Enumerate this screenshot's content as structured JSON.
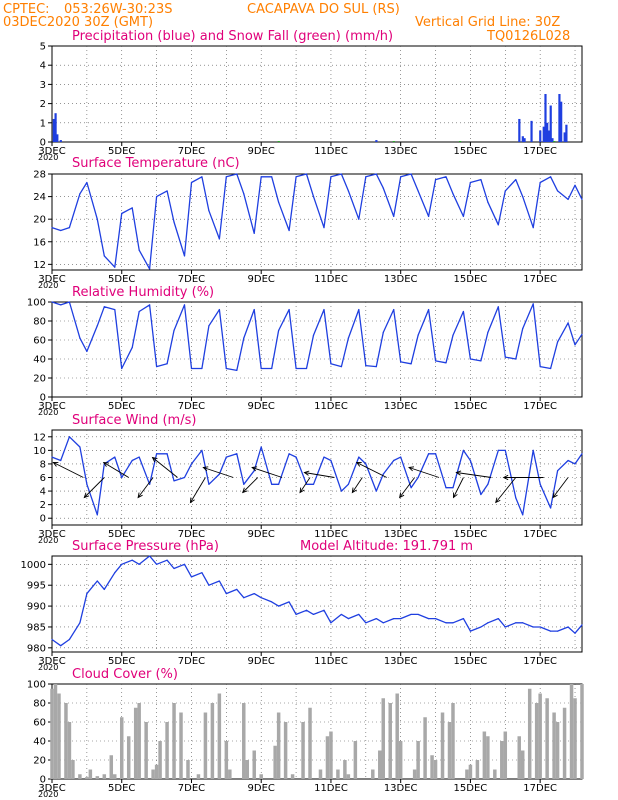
{
  "header": {
    "source": "CPTEC:",
    "location_coords": "053:26W-30:23S",
    "location_name": "CACAPAVA DO SUL (RS)",
    "run_date": "03DEC2020 30Z (GMT)",
    "grid_note": "Vertical Grid Line: 30Z",
    "model_code": "TQ0126L028"
  },
  "colors": {
    "header_text": "#ff7f00",
    "title_text": "#e0007a",
    "series_line": "#1f3fe0",
    "snow": "#22aa22",
    "precip": "#1f3fe0",
    "cloud_fill": "#a8a8a8",
    "wind_arrow": "#000000"
  },
  "chart_data": [
    {
      "id": "precip",
      "type": "bar",
      "title": "Precipitation (blue) and Snow Fall (green) (mm/h)",
      "ylim": [
        0,
        5
      ],
      "yticks": [
        0,
        1,
        2,
        3,
        4,
        5
      ],
      "x_ticks": [
        "3DEC",
        "5DEC",
        "7DEC",
        "9DEC",
        "11DEC",
        "13DEC",
        "15DEC",
        "17DEC"
      ],
      "year_label": "2020",
      "series": [
        {
          "kind": "precip",
          "x": [
            0.05,
            0.1,
            0.15,
            0.25,
            9.3,
            13.4,
            13.5,
            13.55,
            13.75,
            14.0,
            14.1,
            14.15,
            14.2,
            14.25,
            14.3,
            14.35,
            14.55,
            14.6,
            14.7,
            14.75
          ],
          "values": [
            1.2,
            1.5,
            0.4,
            0.1,
            0.1,
            1.2,
            0.3,
            0.2,
            1.1,
            0.6,
            0.8,
            2.5,
            1.0,
            0.6,
            1.9,
            0.2,
            2.5,
            2.1,
            0.5,
            0.9
          ]
        },
        {
          "kind": "snow",
          "x": [
            6.5,
            9.8,
            11.7,
            14.4
          ],
          "values": [
            0.05,
            0.05,
            0.05,
            0.05
          ]
        }
      ]
    },
    {
      "id": "temp",
      "type": "line",
      "title": "Surface Temperature (nC)",
      "ylim": [
        11,
        28
      ],
      "yticks": [
        12,
        16,
        20,
        24,
        28
      ],
      "x_ticks": [
        "3DEC",
        "5DEC",
        "7DEC",
        "9DEC",
        "11DEC",
        "13DEC",
        "15DEC",
        "17DEC"
      ],
      "year_label": "2020",
      "series": [
        {
          "name": "",
          "x": [
            0,
            0.25,
            0.5,
            0.8,
            1.0,
            1.3,
            1.5,
            1.8,
            2.0,
            2.3,
            2.5,
            2.8,
            3.0,
            3.3,
            3.5,
            3.8,
            4.0,
            4.3,
            4.5,
            4.8,
            5.0,
            5.3,
            5.5,
            5.8,
            6.0,
            6.3,
            6.5,
            6.8,
            7.0,
            7.3,
            7.5,
            7.8,
            8.0,
            8.3,
            8.5,
            8.8,
            9.0,
            9.3,
            9.5,
            9.8,
            10.0,
            10.3,
            10.5,
            10.8,
            11.0,
            11.3,
            11.5,
            11.8,
            12.0,
            12.3,
            12.5,
            12.8,
            13.0,
            13.3,
            13.5,
            13.8,
            14.0,
            14.3,
            14.5,
            14.8,
            15.0,
            15.2
          ],
          "values": [
            18.5,
            18,
            18.5,
            24.5,
            26.5,
            20,
            13.5,
            11.5,
            21,
            22,
            14.5,
            11.2,
            24,
            25,
            19.5,
            13.5,
            26.5,
            27.5,
            21.5,
            16.5,
            27.5,
            28,
            24.5,
            17.5,
            27.5,
            27.5,
            23,
            18,
            27.5,
            28,
            24,
            18.5,
            27.5,
            28,
            25,
            20,
            27.5,
            28,
            25.5,
            20.5,
            27.5,
            28,
            25,
            20.5,
            27,
            27.5,
            24.5,
            20.5,
            26.5,
            27,
            23,
            19,
            25,
            27,
            24,
            18.5,
            26.5,
            27.5,
            25,
            23.5,
            26,
            23.5
          ]
        }
      ]
    },
    {
      "id": "rh",
      "type": "line",
      "title": "Relative Humidity (%)",
      "ylim": [
        0,
        100
      ],
      "yticks": [
        0,
        20,
        40,
        60,
        80,
        100
      ],
      "x_ticks": [
        "3DEC",
        "5DEC",
        "7DEC",
        "9DEC",
        "11DEC",
        "13DEC",
        "15DEC",
        "17DEC"
      ],
      "year_label": "2020",
      "series": [
        {
          "name": "",
          "x": [
            0,
            0.25,
            0.5,
            0.8,
            1.0,
            1.3,
            1.5,
            1.8,
            2.0,
            2.3,
            2.5,
            2.8,
            3.0,
            3.3,
            3.5,
            3.8,
            4.0,
            4.3,
            4.5,
            4.8,
            5.0,
            5.3,
            5.5,
            5.8,
            6.0,
            6.3,
            6.5,
            6.8,
            7.0,
            7.3,
            7.5,
            7.8,
            8.0,
            8.3,
            8.5,
            8.8,
            9.0,
            9.3,
            9.5,
            9.8,
            10.0,
            10.3,
            10.5,
            10.8,
            11.0,
            11.3,
            11.5,
            11.8,
            12.0,
            12.3,
            12.5,
            12.8,
            13.0,
            13.3,
            13.5,
            13.8,
            14.0,
            14.3,
            14.5,
            14.8,
            15.0,
            15.2
          ],
          "values": [
            100,
            97,
            100,
            62,
            48,
            75,
            95,
            92,
            30,
            52,
            90,
            97,
            32,
            35,
            70,
            97,
            30,
            30,
            75,
            92,
            30,
            28,
            62,
            92,
            30,
            30,
            70,
            92,
            30,
            30,
            65,
            92,
            35,
            32,
            62,
            92,
            33,
            32,
            68,
            92,
            37,
            35,
            65,
            92,
            38,
            36,
            65,
            90,
            40,
            38,
            68,
            95,
            42,
            40,
            72,
            98,
            32,
            30,
            58,
            78,
            55,
            66
          ]
        }
      ]
    },
    {
      "id": "wind",
      "type": "line",
      "title": "Surface Wind (m/s)",
      "ylim": [
        -1,
        13
      ],
      "yticks": [
        0,
        2,
        4,
        6,
        8,
        10,
        12
      ],
      "x_ticks": [
        "3DEC",
        "5DEC",
        "7DEC",
        "9DEC",
        "11DEC",
        "13DEC",
        "15DEC",
        "17DEC"
      ],
      "year_label": "2020",
      "series": [
        {
          "name": "",
          "x": [
            0,
            0.25,
            0.5,
            0.8,
            1.0,
            1.3,
            1.5,
            1.8,
            2.0,
            2.3,
            2.5,
            2.8,
            3.0,
            3.3,
            3.5,
            3.8,
            4.0,
            4.3,
            4.5,
            4.8,
            5.0,
            5.3,
            5.5,
            5.8,
            6.0,
            6.3,
            6.5,
            6.8,
            7.0,
            7.3,
            7.5,
            7.8,
            8.0,
            8.3,
            8.5,
            8.8,
            9.0,
            9.3,
            9.5,
            9.8,
            10.0,
            10.3,
            10.5,
            10.8,
            11.0,
            11.3,
            11.5,
            11.8,
            12.0,
            12.3,
            12.5,
            12.8,
            13.0,
            13.3,
            13.5,
            13.8,
            14.0,
            14.3,
            14.5,
            14.8,
            15.0,
            15.2
          ],
          "values": [
            9,
            8.5,
            12,
            10.5,
            5,
            0.5,
            8,
            9,
            6,
            8.5,
            9,
            5,
            9.5,
            9.5,
            5.5,
            6,
            8,
            10,
            5,
            6.5,
            9,
            9.5,
            5,
            7,
            10.5,
            5,
            5,
            9.5,
            9,
            5,
            5,
            9,
            8.5,
            4,
            5,
            9,
            8,
            4,
            6.5,
            8.5,
            9,
            4.5,
            6,
            9.5,
            9.5,
            4.5,
            4.5,
            10,
            8.5,
            3.5,
            5,
            10,
            10,
            3,
            0.5,
            10,
            5,
            1.5,
            7,
            8.5,
            8,
            9.5
          ]
        }
      ],
      "arrows": [
        {
          "x": 0.9,
          "u": -6,
          "v": 3
        },
        {
          "x": 1.5,
          "u": -4,
          "v": -4
        },
        {
          "x": 2.2,
          "u": -5,
          "v": 3
        },
        {
          "x": 2.9,
          "u": -3,
          "v": -4
        },
        {
          "x": 3.6,
          "u": -5,
          "v": 4
        },
        {
          "x": 4.4,
          "u": -3,
          "v": -5
        },
        {
          "x": 5.2,
          "u": -6,
          "v": 2
        },
        {
          "x": 5.9,
          "u": -3,
          "v": -3
        },
        {
          "x": 6.6,
          "u": -6,
          "v": 2
        },
        {
          "x": 7.4,
          "u": -2,
          "v": -3
        },
        {
          "x": 8.1,
          "u": -6,
          "v": 1
        },
        {
          "x": 8.9,
          "u": -2,
          "v": -3
        },
        {
          "x": 9.6,
          "u": -6,
          "v": 3
        },
        {
          "x": 10.4,
          "u": -3,
          "v": -4
        },
        {
          "x": 11.1,
          "u": -6,
          "v": 2
        },
        {
          "x": 11.8,
          "u": -2,
          "v": -4
        },
        {
          "x": 12.6,
          "u": -7,
          "v": 1
        },
        {
          "x": 13.3,
          "u": -4,
          "v": -5
        },
        {
          "x": 14.1,
          "u": -8,
          "v": 0
        },
        {
          "x": 14.8,
          "u": -3,
          "v": -4
        }
      ]
    },
    {
      "id": "pressure",
      "type": "line",
      "title": "Surface Pressure (hPa)",
      "annotation": "Model Altitude: 191.791 m",
      "ylim": [
        979,
        1002
      ],
      "yticks": [
        980,
        985,
        990,
        995,
        1000
      ],
      "x_ticks": [
        "3DEC",
        "5DEC",
        "7DEC",
        "9DEC",
        "11DEC",
        "13DEC",
        "15DEC",
        "17DEC"
      ],
      "year_label": "2020",
      "series": [
        {
          "name": "",
          "x": [
            0,
            0.25,
            0.5,
            0.8,
            1.0,
            1.3,
            1.5,
            1.8,
            2.0,
            2.3,
            2.5,
            2.8,
            3.0,
            3.3,
            3.5,
            3.8,
            4.0,
            4.3,
            4.5,
            4.8,
            5.0,
            5.3,
            5.5,
            5.8,
            6.0,
            6.3,
            6.5,
            6.8,
            7.0,
            7.3,
            7.5,
            7.8,
            8.0,
            8.3,
            8.5,
            8.8,
            9.0,
            9.3,
            9.5,
            9.8,
            10.0,
            10.3,
            10.5,
            10.8,
            11.0,
            11.3,
            11.5,
            11.8,
            12.0,
            12.3,
            12.5,
            12.8,
            13.0,
            13.3,
            13.5,
            13.8,
            14.0,
            14.3,
            14.5,
            14.8,
            15.0,
            15.2
          ],
          "values": [
            982,
            980.5,
            982,
            986,
            993,
            996,
            994,
            998,
            1000,
            1001,
            1000,
            1002,
            1000,
            1001,
            999,
            1000,
            997,
            998,
            995,
            996,
            993,
            994,
            992,
            993,
            992,
            991,
            990,
            991,
            988,
            989,
            988,
            989,
            986,
            988,
            987,
            988,
            986,
            987,
            986,
            987,
            987,
            988,
            988,
            987,
            987,
            986,
            986,
            987,
            984,
            985,
            986,
            987,
            985,
            986,
            986,
            985,
            985,
            984,
            984,
            985,
            983.5,
            985.5
          ]
        }
      ]
    },
    {
      "id": "cloud",
      "type": "area",
      "title": "Cloud Cover (%)",
      "ylim": [
        0,
        100
      ],
      "yticks": [
        0,
        20,
        40,
        60,
        80,
        100
      ],
      "x_ticks": [
        "3DEC",
        "5DEC",
        "7DEC",
        "9DEC",
        "11DEC",
        "13DEC",
        "15DEC",
        "17DEC"
      ],
      "year_label": "2020",
      "series": [
        {
          "name": "",
          "x": [
            0,
            0.1,
            0.2,
            0.4,
            0.5,
            0.6,
            0.8,
            0.9,
            1.0,
            1.1,
            1.3,
            1.5,
            1.7,
            1.8,
            2.0,
            2.2,
            2.4,
            2.5,
            2.7,
            2.9,
            3.0,
            3.1,
            3.3,
            3.5,
            3.7,
            3.9,
            4.0,
            4.2,
            4.4,
            4.6,
            4.8,
            5.0,
            5.1,
            5.3,
            5.5,
            5.6,
            5.8,
            6.0,
            6.2,
            6.4,
            6.5,
            6.7,
            6.9,
            7.0,
            7.2,
            7.4,
            7.5,
            7.7,
            7.9,
            8.0,
            8.2,
            8.4,
            8.5,
            8.7,
            8.9,
            9.0,
            9.2,
            9.4,
            9.5,
            9.7,
            9.9,
            10.0,
            10.2,
            10.4,
            10.5,
            10.7,
            10.9,
            11.0,
            11.2,
            11.4,
            11.5,
            11.7,
            11.9,
            12.0,
            12.2,
            12.4,
            12.5,
            12.7,
            12.9,
            13.0,
            13.2,
            13.4,
            13.5,
            13.7,
            13.9,
            14.0,
            14.2,
            14.4,
            14.5,
            14.7,
            14.9,
            15.0,
            15.2
          ],
          "values": [
            95,
            100,
            90,
            80,
            60,
            20,
            5,
            0,
            2,
            10,
            3,
            5,
            25,
            5,
            65,
            45,
            75,
            80,
            60,
            10,
            15,
            40,
            60,
            80,
            70,
            20,
            0,
            5,
            70,
            80,
            90,
            40,
            10,
            0,
            80,
            20,
            30,
            5,
            0,
            35,
            70,
            60,
            5,
            0,
            60,
            75,
            0,
            10,
            45,
            50,
            10,
            20,
            5,
            40,
            0,
            0,
            10,
            30,
            85,
            80,
            90,
            40,
            0,
            10,
            40,
            65,
            25,
            20,
            70,
            60,
            80,
            0,
            10,
            15,
            20,
            50,
            45,
            10,
            40,
            50,
            0,
            45,
            30,
            95,
            80,
            90,
            85,
            70,
            60,
            75,
            100,
            85,
            100
          ]
        }
      ]
    }
  ]
}
